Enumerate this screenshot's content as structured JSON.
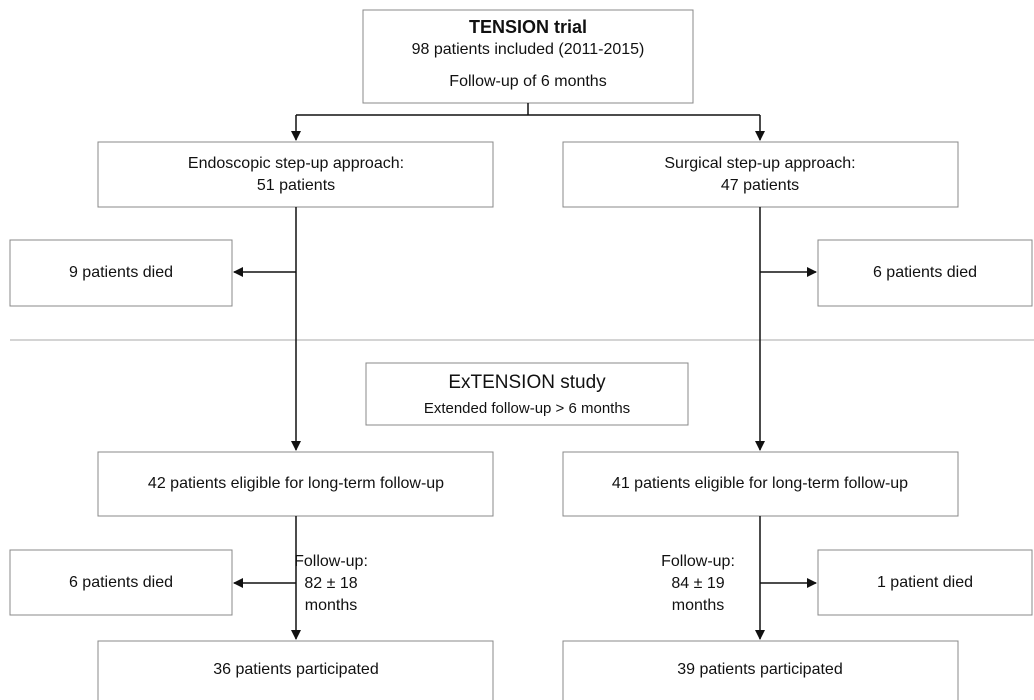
{
  "trial": {
    "title": "TENSION trial",
    "included": "98 patients included (2011-2015)",
    "followup": "Follow-up of 6 months"
  },
  "arms": [
    {
      "approach": "Endoscopic step-up approach:",
      "patients": "51 patients",
      "died_first": "9 patients died",
      "eligible": "42 patients eligible for long-term follow-up",
      "followup": [
        "Follow-up:",
        "82 ± 18",
        "months"
      ],
      "died_second": "6 patients died",
      "participated": "36 patients participated"
    },
    {
      "approach": "Surgical step-up approach:",
      "patients": "47 patients",
      "died_first": "6 patients died",
      "eligible": "41 patients eligible for long-term follow-up",
      "followup": [
        "Follow-up:",
        "84 ± 19",
        "months"
      ],
      "died_second": "1 patient died",
      "participated": "39 patients participated"
    }
  ],
  "extension": {
    "title": "ExTENSION study",
    "subtitle": "Extended follow-up > 6 months"
  }
}
